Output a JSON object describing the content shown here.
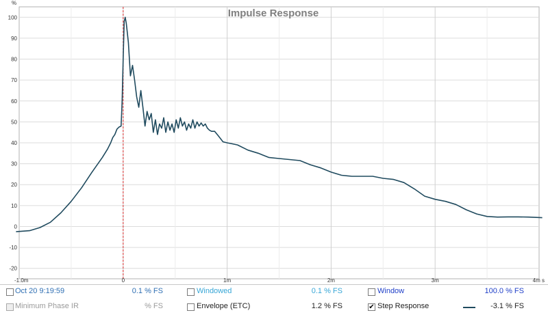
{
  "chart_data": {
    "type": "line",
    "title": "Impulse Response",
    "ylabel": "%",
    "xlim": [
      -1.0,
      4.0
    ],
    "ylim": [
      -25,
      105
    ],
    "x_unit": "ms",
    "y_ticks": [
      100,
      90,
      80,
      70,
      60,
      50,
      40,
      30,
      20,
      10,
      0,
      -10,
      -20
    ],
    "x_ticks": [
      {
        "v": -1,
        "label": "-1.0m"
      },
      {
        "v": 0,
        "label": "0"
      },
      {
        "v": 1,
        "label": "1m"
      },
      {
        "v": 2,
        "label": "2m"
      },
      {
        "v": 3,
        "label": "3m"
      },
      {
        "v": 4,
        "label": "4m s"
      }
    ],
    "vgrid_minor": [
      -0.5,
      0.5,
      1.5,
      2.5,
      3.5
    ],
    "marker_x": 0,
    "grid": true,
    "series": [
      {
        "color": "#1f4a5e",
        "x": [
          -1.03,
          -0.9,
          -0.8,
          -0.7,
          -0.6,
          -0.5,
          -0.4,
          -0.3,
          -0.2,
          -0.15,
          -0.12,
          -0.1,
          -0.08,
          -0.06,
          -0.04,
          -0.02,
          -0.01,
          0.0,
          0.01,
          0.02,
          0.03,
          0.05,
          0.07,
          0.09,
          0.11,
          0.13,
          0.15,
          0.17,
          0.19,
          0.21,
          0.23,
          0.25,
          0.27,
          0.29,
          0.31,
          0.33,
          0.35,
          0.37,
          0.39,
          0.41,
          0.43,
          0.45,
          0.47,
          0.49,
          0.51,
          0.53,
          0.55,
          0.57,
          0.59,
          0.61,
          0.63,
          0.65,
          0.67,
          0.69,
          0.71,
          0.73,
          0.75,
          0.77,
          0.79,
          0.81,
          0.83,
          0.85,
          0.88,
          0.92,
          0.96,
          1.0,
          1.05,
          1.1,
          1.2,
          1.3,
          1.4,
          1.5,
          1.6,
          1.7,
          1.8,
          1.9,
          2.0,
          2.1,
          2.2,
          2.3,
          2.4,
          2.5,
          2.6,
          2.7,
          2.8,
          2.9,
          3.0,
          3.1,
          3.2,
          3.3,
          3.4,
          3.5,
          3.6,
          3.7,
          3.8,
          3.9,
          4.03
        ],
        "y": [
          -2.5,
          -2.0,
          -0.5,
          2.0,
          6.5,
          12.0,
          18.5,
          26.0,
          33.0,
          37.0,
          40.0,
          42.5,
          44.0,
          46.5,
          47.5,
          48.0,
          60.0,
          80.0,
          98.0,
          100.0,
          97.0,
          88.0,
          72.0,
          77.0,
          70.0,
          62.0,
          57.0,
          65.0,
          57.0,
          48.0,
          55.0,
          51.0,
          54.0,
          45.0,
          51.0,
          44.0,
          49.0,
          47.0,
          52.0,
          45.0,
          50.0,
          46.0,
          49.0,
          45.0,
          51.0,
          47.0,
          52.0,
          48.0,
          50.0,
          46.0,
          49.0,
          47.0,
          51.0,
          47.0,
          50.0,
          48.0,
          49.5,
          48.0,
          49.0,
          47.0,
          46.0,
          45.5,
          45.5,
          43.0,
          40.5,
          40.0,
          39.5,
          39.0,
          36.5,
          35.0,
          33.0,
          32.5,
          32.0,
          31.5,
          29.5,
          28.0,
          26.0,
          24.5,
          24.0,
          24.0,
          24.0,
          23.0,
          22.5,
          21.0,
          18.0,
          14.5,
          13.0,
          12.0,
          10.5,
          8.0,
          6.0,
          4.8,
          4.5,
          4.6,
          4.6,
          4.5,
          4.2
        ]
      }
    ]
  },
  "legend": {
    "rows": [
      [
        {
          "label": "Oct 20 9:19:59",
          "value": "0.1 % FS",
          "checked": false,
          "disabled": false,
          "label_color": "#2f6fb3",
          "value_color": "#2f6fb3"
        },
        {
          "label": "Windowed",
          "value": "0.1 % FS",
          "checked": false,
          "disabled": false,
          "label_color": "#37a6d6",
          "value_color": "#37a6d6"
        },
        {
          "label": "Window",
          "value": "100.0 % FS",
          "checked": false,
          "disabled": false,
          "label_color": "#1f3fc8",
          "value_color": "#1f3fc8"
        }
      ],
      [
        {
          "label": "Minimum Phase IR",
          "value": "% FS",
          "checked": false,
          "disabled": true,
          "label_color": "#9a9a9a",
          "value_color": "#9a9a9a"
        },
        {
          "label": "Envelope (ETC)",
          "value": "1.2 % FS",
          "checked": false,
          "disabled": false,
          "label_color": "#222222",
          "value_color": "#222222"
        },
        {
          "label": "Step Response",
          "value": "-3.1 % FS",
          "checked": true,
          "disabled": false,
          "label_color": "#222222",
          "value_color": "#222222",
          "swatch_color": "#1f4a5e"
        }
      ]
    ],
    "check_glyph": "✔"
  }
}
